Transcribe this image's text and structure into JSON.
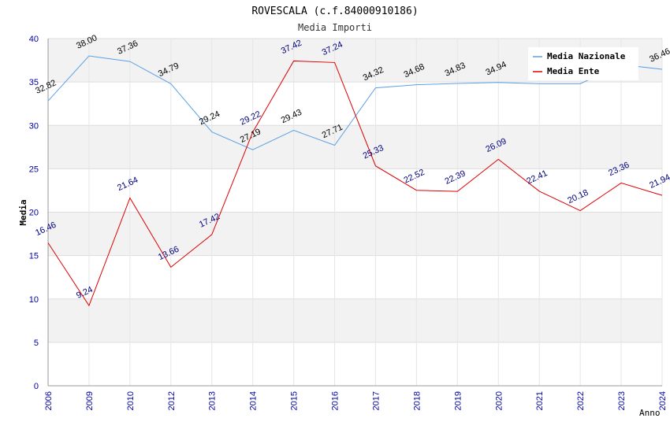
{
  "chart_data": {
    "type": "line",
    "title": "ROVESCALA (c.f.84000910186)",
    "subtitle": "Media Importi",
    "xlabel": "Anno",
    "ylabel": "Media",
    "ylim": [
      0,
      40
    ],
    "yticks": [
      "0",
      "5",
      "10",
      "15",
      "20",
      "25",
      "30",
      "35",
      "40"
    ],
    "categories": [
      "2006",
      "2009",
      "2010",
      "2012",
      "2013",
      "2014",
      "2015",
      "2016",
      "2017",
      "2018",
      "2019",
      "2020",
      "2021",
      "2022",
      "2023",
      "2024"
    ],
    "series": [
      {
        "name": "Media Nazionale",
        "color": "#5aa0e6",
        "values": [
          32.82,
          38.0,
          37.36,
          34.79,
          29.24,
          27.19,
          29.43,
          27.71,
          34.32,
          34.68,
          34.83,
          34.94,
          34.8,
          34.8,
          37.0,
          36.46
        ],
        "labels": [
          "32.82",
          "38.00",
          "37.36",
          "34.79",
          "29.24",
          "27.19",
          "29.43",
          "27.71",
          "34.32",
          "34.68",
          "34.83",
          "34.94",
          "",
          "",
          "",
          "36.46"
        ]
      },
      {
        "name": "Media Ente",
        "color": "#dd0000",
        "values": [
          16.46,
          9.24,
          21.64,
          13.66,
          17.42,
          29.22,
          37.42,
          37.24,
          25.33,
          22.52,
          22.39,
          26.09,
          22.41,
          20.18,
          23.36,
          21.94
        ],
        "labels": [
          "16.46",
          "9.24",
          "21.64",
          "13.66",
          "17.42",
          "29.22",
          "37.42",
          "37.24",
          "25.33",
          "22.52",
          "22.39",
          "26.09",
          "22.41",
          "20.18",
          "23.36",
          "21.94"
        ]
      }
    ],
    "legend_position": "top-right"
  }
}
